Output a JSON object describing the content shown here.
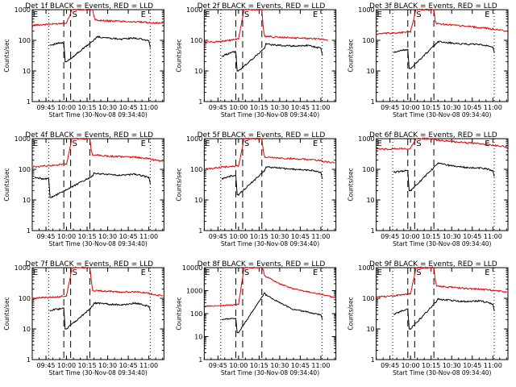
{
  "colors": {
    "events": "#000000",
    "lld": "#e00000",
    "background": "#ffffff",
    "axes": "#000000"
  },
  "chart_data": [
    {
      "type": "line",
      "title": "Det 1f BLACK = Events, RED = LLD",
      "xlabel": "Start Time (30-Nov-08 09:34:40)",
      "ylabel": "Counts/sec",
      "y_scale": "log",
      "ylim": [
        1,
        1000
      ],
      "y_ticks": [
        {
          "value": 1,
          "label": "1"
        },
        {
          "value": 10,
          "label": "10"
        },
        {
          "value": 100,
          "label": "100"
        },
        {
          "value": 1000,
          "label": "1000"
        }
      ],
      "x_ticks": [
        "09:45",
        "10:00",
        "10:15",
        "10:30",
        "10:45",
        "11:00"
      ],
      "markers": [
        "E",
        "S",
        "E"
      ],
      "series": [
        {
          "name": "LLD",
          "color": "#e00000",
          "x": [
            "09:35",
            "09:50",
            "10:00",
            "10:04",
            "10:05",
            "10:19",
            "10:20",
            "10:21",
            "10:30",
            "10:40",
            "10:50",
            "11:00",
            "11:10"
          ],
          "y": [
            310,
            340,
            370,
            1000,
            1000,
            1000,
            600,
            460,
            430,
            420,
            400,
            380,
            360
          ]
        },
        {
          "name": "Events",
          "color": "#000000",
          "x": [
            "09:48",
            "09:54",
            "09:58",
            "09:59",
            "10:00",
            "10:21",
            "10:22",
            "10:30",
            "10:40",
            "10:50",
            "10:55",
            "11:00",
            "11:01"
          ],
          "y": [
            70,
            80,
            82,
            20,
            20,
            110,
            130,
            120,
            110,
            118,
            108,
            95,
            60
          ]
        }
      ]
    },
    {
      "type": "line",
      "title": "Det 2f BLACK = Events, RED = LLD",
      "xlabel": "Start Time (30-Nov-08 09:34:40)",
      "ylabel": "Counts/sec",
      "y_scale": "log",
      "ylim": [
        1,
        1000
      ],
      "y_ticks": [
        {
          "value": 1,
          "label": "1"
        },
        {
          "value": 10,
          "label": "10"
        },
        {
          "value": 100,
          "label": "100"
        },
        {
          "value": 1000,
          "label": "1000"
        }
      ],
      "x_ticks": [
        "09:45",
        "10:00",
        "10:15",
        "10:30",
        "10:45",
        "11:00"
      ],
      "markers": [
        "E",
        "S",
        "E"
      ],
      "series": [
        {
          "name": "LLD",
          "color": "#e00000",
          "x": [
            "09:35",
            "09:50",
            "10:00",
            "10:04",
            "10:05",
            "10:17",
            "10:18",
            "10:19",
            "10:30",
            "10:40",
            "10:50",
            "11:00",
            "11:05"
          ],
          "y": [
            85,
            95,
            110,
            1000,
            1000,
            1000,
            260,
            135,
            125,
            120,
            118,
            110,
            100
          ]
        },
        {
          "name": "Events",
          "color": "#000000",
          "x": [
            "09:48",
            "09:54",
            "09:58",
            "09:59",
            "10:00",
            "10:19",
            "10:20",
            "10:30",
            "10:40",
            "10:50",
            "10:55",
            "11:00",
            "11:01"
          ],
          "y": [
            30,
            40,
            42,
            10,
            10,
            55,
            75,
            68,
            65,
            68,
            62,
            55,
            35
          ]
        }
      ]
    },
    {
      "type": "line",
      "title": "Det 3f BLACK = Events, RED = LLD",
      "xlabel": "Start Time (30-Nov-08 09:34:40)",
      "ylabel": "Counts/sec",
      "y_scale": "log",
      "ylim": [
        1,
        1000
      ],
      "y_ticks": [
        {
          "value": 1,
          "label": "1"
        },
        {
          "value": 10,
          "label": "10"
        },
        {
          "value": 100,
          "label": "100"
        },
        {
          "value": 1000,
          "label": "1000"
        }
      ],
      "x_ticks": [
        "09:45",
        "10:00",
        "10:15",
        "10:30",
        "10:45",
        "11:00"
      ],
      "markers": [
        "E",
        "S",
        "E"
      ],
      "series": [
        {
          "name": "LLD",
          "color": "#e00000",
          "x": [
            "09:35",
            "09:50",
            "10:00",
            "10:04",
            "10:05",
            "10:17",
            "10:18",
            "10:19",
            "10:30",
            "10:40",
            "10:50",
            "11:00",
            "11:10"
          ],
          "y": [
            160,
            175,
            190,
            1000,
            1000,
            1000,
            420,
            350,
            320,
            290,
            260,
            235,
            200
          ]
        },
        {
          "name": "Events",
          "color": "#000000",
          "x": [
            "09:48",
            "09:54",
            "09:58",
            "09:59",
            "10:00",
            "10:19",
            "10:20",
            "10:30",
            "10:40",
            "10:50",
            "10:55",
            "11:00",
            "11:01"
          ],
          "y": [
            40,
            48,
            50,
            12,
            12,
            80,
            90,
            82,
            75,
            72,
            68,
            60,
            40
          ]
        }
      ]
    },
    {
      "type": "line",
      "title": "Det 4f BLACK = Events, RED = LLD",
      "xlabel": "Start Time (30-Nov-08 09:34:40)",
      "ylabel": "Counts/sec",
      "y_scale": "log",
      "ylim": [
        1,
        1000
      ],
      "y_ticks": [
        {
          "value": 1,
          "label": "1"
        },
        {
          "value": 10,
          "label": "10"
        },
        {
          "value": 100,
          "label": "100"
        },
        {
          "value": 1000,
          "label": "1000"
        }
      ],
      "x_ticks": [
        "09:45",
        "10:00",
        "10:15",
        "10:30",
        "10:45",
        "11:00"
      ],
      "markers": [
        "E",
        "S",
        "E"
      ],
      "series": [
        {
          "name": "LLD",
          "color": "#e00000",
          "x": [
            "09:35",
            "09:50",
            "10:00",
            "10:04",
            "10:05",
            "10:17",
            "10:18",
            "10:19",
            "10:30",
            "10:40",
            "10:50",
            "11:00",
            "11:10"
          ],
          "y": [
            120,
            135,
            150,
            1000,
            1000,
            1000,
            420,
            300,
            270,
            260,
            250,
            220,
            180
          ]
        },
        {
          "name": "Events",
          "color": "#000000",
          "x": [
            "09:37",
            "09:42",
            "09:47",
            "09:48",
            "09:49",
            "10:19",
            "10:20",
            "10:30",
            "10:40",
            "10:50",
            "10:55",
            "11:00",
            "11:01"
          ],
          "y": [
            55,
            50,
            48,
            12,
            12,
            60,
            75,
            68,
            64,
            70,
            62,
            55,
            35
          ]
        }
      ]
    },
    {
      "type": "line",
      "title": "Det 5f BLACK = Events, RED = LLD",
      "xlabel": "Start Time (30-Nov-08 09:34:40)",
      "ylabel": "Counts/sec",
      "y_scale": "log",
      "ylim": [
        1,
        1000
      ],
      "y_ticks": [
        {
          "value": 1,
          "label": "1"
        },
        {
          "value": 10,
          "label": "10"
        },
        {
          "value": 100,
          "label": "100"
        },
        {
          "value": 1000,
          "label": "1000"
        }
      ],
      "x_ticks": [
        "09:45",
        "10:00",
        "10:15",
        "10:30",
        "10:45",
        "11:00"
      ],
      "markers": [
        "E",
        "S",
        "E"
      ],
      "series": [
        {
          "name": "LLD",
          "color": "#e00000",
          "x": [
            "09:35",
            "09:50",
            "10:00",
            "10:04",
            "10:05",
            "10:17",
            "10:18",
            "10:19",
            "10:30",
            "10:40",
            "10:50",
            "11:00",
            "11:10"
          ],
          "y": [
            100,
            120,
            130,
            1000,
            1000,
            1000,
            420,
            250,
            230,
            220,
            210,
            190,
            160
          ]
        },
        {
          "name": "Events",
          "color": "#000000",
          "x": [
            "09:48",
            "09:54",
            "09:58",
            "09:59",
            "10:00",
            "10:19",
            "10:20",
            "10:30",
            "10:40",
            "10:50",
            "10:55",
            "11:00",
            "11:01"
          ],
          "y": [
            50,
            60,
            62,
            15,
            15,
            90,
            120,
            110,
            100,
            95,
            90,
            80,
            50
          ]
        }
      ]
    },
    {
      "type": "line",
      "title": "Det 6f BLACK = Events, RED = LLD",
      "xlabel": "Start Time (30-Nov-08 09:34:40)",
      "ylabel": "Counts/sec",
      "y_scale": "log",
      "ylim": [
        1,
        1000
      ],
      "y_ticks": [
        {
          "value": 1,
          "label": "1"
        },
        {
          "value": 10,
          "label": "10"
        },
        {
          "value": 100,
          "label": "100"
        },
        {
          "value": 1000,
          "label": "1000"
        }
      ],
      "x_ticks": [
        "09:45",
        "10:00",
        "10:15",
        "10:30",
        "10:45",
        "11:00"
      ],
      "markers": [
        "E",
        "S",
        "E"
      ],
      "series": [
        {
          "name": "LLD",
          "color": "#e00000",
          "x": [
            "09:35",
            "09:50",
            "10:00",
            "10:04",
            "10:05",
            "10:17",
            "10:18",
            "10:19",
            "10:30",
            "10:40",
            "10:50",
            "11:00",
            "11:10"
          ],
          "y": [
            450,
            470,
            480,
            1000,
            1000,
            1000,
            950,
            900,
            820,
            750,
            680,
            620,
            550
          ]
        },
        {
          "name": "Events",
          "color": "#000000",
          "x": [
            "09:48",
            "09:54",
            "09:58",
            "09:59",
            "10:00",
            "10:19",
            "10:20",
            "10:30",
            "10:40",
            "10:50",
            "10:55",
            "11:00",
            "11:01"
          ],
          "y": [
            80,
            88,
            90,
            20,
            20,
            140,
            160,
            130,
            115,
            110,
            105,
            90,
            60
          ]
        }
      ]
    },
    {
      "type": "line",
      "title": "Det 7f BLACK = Events, RED = LLD",
      "xlabel": "Start Time (30-Nov-08 09:34:40)",
      "ylabel": "Counts/sec",
      "y_scale": "log",
      "ylim": [
        1,
        1000
      ],
      "y_ticks": [
        {
          "value": 1,
          "label": "1"
        },
        {
          "value": 10,
          "label": "10"
        },
        {
          "value": 100,
          "label": "100"
        },
        {
          "value": 1000,
          "label": "1000"
        }
      ],
      "x_ticks": [
        "09:45",
        "10:00",
        "10:15",
        "10:30",
        "10:45",
        "11:00"
      ],
      "markers": [
        "E",
        "S",
        "E"
      ],
      "series": [
        {
          "name": "LLD",
          "color": "#e00000",
          "x": [
            "09:35",
            "09:50",
            "10:00",
            "10:04",
            "10:05",
            "10:17",
            "10:18",
            "10:19",
            "10:30",
            "10:40",
            "10:50",
            "11:00",
            "11:10"
          ],
          "y": [
            100,
            110,
            120,
            1000,
            1000,
            1000,
            400,
            180,
            170,
            160,
            165,
            145,
            120
          ]
        },
        {
          "name": "Events",
          "color": "#000000",
          "x": [
            "09:48",
            "09:54",
            "09:58",
            "09:59",
            "10:00",
            "10:19",
            "10:20",
            "10:30",
            "10:40",
            "10:50",
            "10:55",
            "11:00",
            "11:01"
          ],
          "y": [
            40,
            45,
            48,
            10,
            10,
            55,
            70,
            65,
            60,
            70,
            62,
            55,
            40
          ]
        }
      ]
    },
    {
      "type": "line",
      "title": "Det 8f BLACK = Events, RED = LLD",
      "xlabel": "Start Time (30-Nov-08 09:34:40)",
      "ylabel": "Counts/sec",
      "y_scale": "log",
      "ylim": [
        1,
        10000
      ],
      "y_ticks": [
        {
          "value": 1,
          "label": "1"
        },
        {
          "value": 10,
          "label": "10"
        },
        {
          "value": 100,
          "label": "100"
        },
        {
          "value": 1000,
          "label": "1000"
        },
        {
          "value": 10000,
          "label": "10000"
        }
      ],
      "x_ticks": [
        "09:45",
        "10:00",
        "10:15",
        "10:30",
        "10:45",
        "11:00"
      ],
      "markers": [
        "E",
        "S",
        "E"
      ],
      "series": [
        {
          "name": "LLD",
          "color": "#e00000",
          "x": [
            "09:35",
            "09:50",
            "10:00",
            "10:04",
            "10:05",
            "10:17",
            "10:18",
            "10:19",
            "10:30",
            "10:40",
            "10:50",
            "11:00",
            "11:10"
          ],
          "y": [
            210,
            230,
            250,
            10000,
            10000,
            10000,
            8000,
            4500,
            2000,
            1200,
            900,
            700,
            500
          ]
        },
        {
          "name": "Events",
          "color": "#000000",
          "x": [
            "09:48",
            "09:54",
            "09:58",
            "09:59",
            "10:00",
            "10:19",
            "10:20",
            "10:30",
            "10:40",
            "10:50",
            "10:55",
            "11:00",
            "11:01"
          ],
          "y": [
            55,
            60,
            62,
            15,
            15,
            800,
            650,
            300,
            150,
            120,
            100,
            90,
            60
          ]
        }
      ]
    },
    {
      "type": "line",
      "title": "Det 9f BLACK = Events, RED = LLD",
      "xlabel": "Start Time (30-Nov-08 09:34:40)",
      "ylabel": "Counts/sec",
      "y_scale": "log",
      "ylim": [
        1,
        1000
      ],
      "y_ticks": [
        {
          "value": 1,
          "label": "1"
        },
        {
          "value": 10,
          "label": "10"
        },
        {
          "value": 100,
          "label": "100"
        },
        {
          "value": 1000,
          "label": "1000"
        }
      ],
      "x_ticks": [
        "09:45",
        "10:00",
        "10:15",
        "10:30",
        "10:45",
        "11:00"
      ],
      "markers": [
        "E",
        "S",
        "E"
      ],
      "series": [
        {
          "name": "LLD",
          "color": "#e00000",
          "x": [
            "09:35",
            "09:50",
            "10:00",
            "10:04",
            "10:05",
            "10:17",
            "10:18",
            "10:19",
            "10:30",
            "10:40",
            "10:50",
            "11:00",
            "11:10"
          ],
          "y": [
            110,
            125,
            140,
            1000,
            1000,
            1000,
            400,
            250,
            230,
            210,
            200,
            185,
            160
          ]
        },
        {
          "name": "Events",
          "color": "#000000",
          "x": [
            "09:48",
            "09:54",
            "09:58",
            "09:59",
            "10:00",
            "10:19",
            "10:20",
            "10:30",
            "10:40",
            "10:50",
            "10:55",
            "11:00",
            "11:01"
          ],
          "y": [
            30,
            40,
            45,
            10,
            10,
            80,
            95,
            85,
            78,
            82,
            75,
            65,
            40
          ]
        }
      ]
    }
  ]
}
